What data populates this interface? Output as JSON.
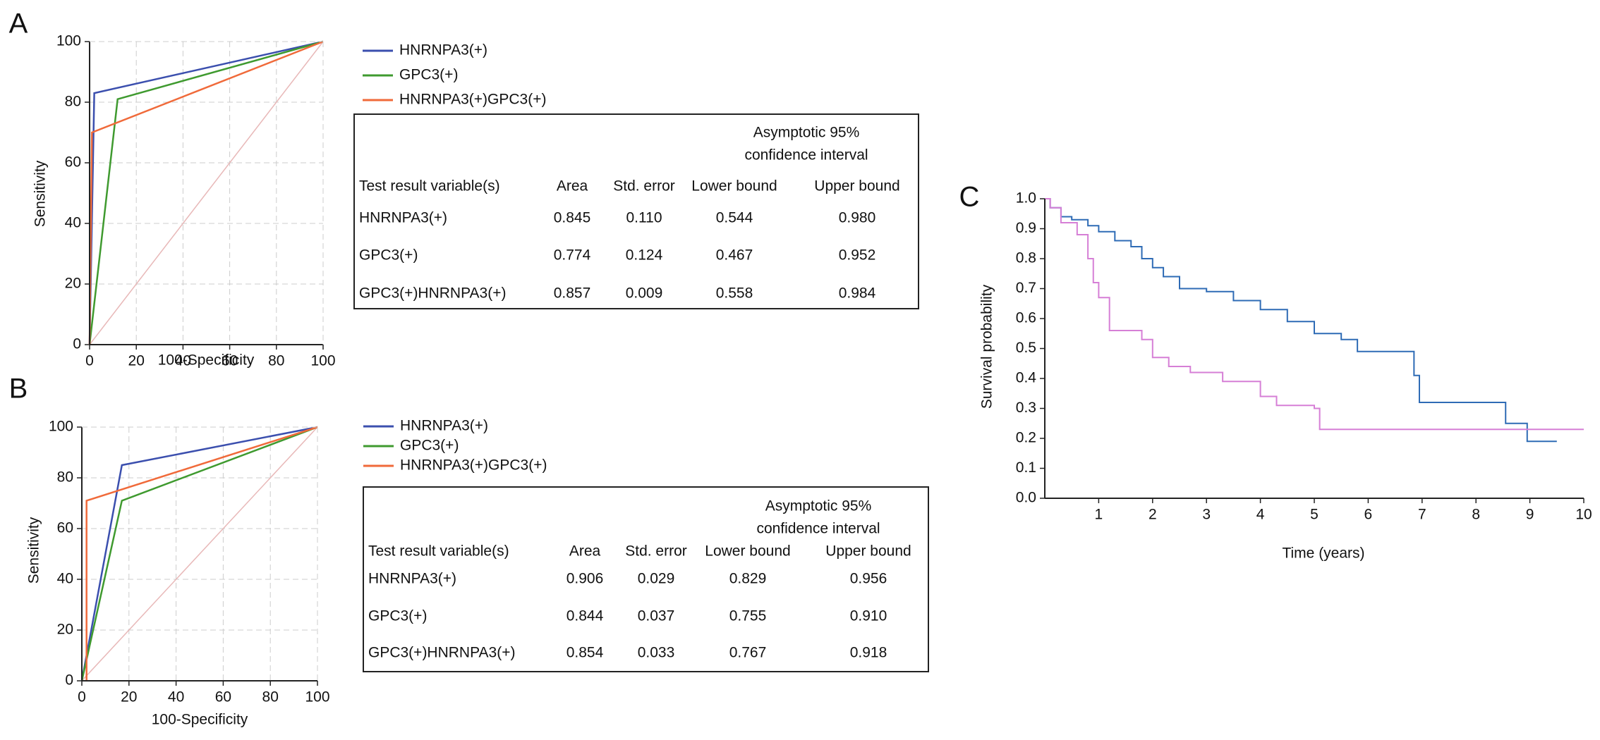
{
  "chart_data": [
    {
      "type": "line",
      "panel_label": "A",
      "x_label": "100-Specificity",
      "y_label": "Sensitivity",
      "xlim": [
        0,
        100
      ],
      "ylim": [
        0,
        100
      ],
      "xticks": [
        0,
        20,
        40,
        60,
        80,
        100
      ],
      "yticks": [
        0,
        20,
        40,
        60,
        80,
        100
      ],
      "grid": true,
      "series": [
        {
          "name": "HNRNPA3(+)",
          "color": "#3b4fae",
          "x": [
            0,
            2,
            100
          ],
          "values": [
            0,
            83,
            100
          ]
        },
        {
          "name": "GPC3(+)",
          "color": "#3f9a2f",
          "x": [
            0,
            12,
            100
          ],
          "values": [
            0,
            81,
            100
          ]
        },
        {
          "name": "HNRNPA3(+)GPC3(+)",
          "color": "#f06a3a",
          "x": [
            0,
            1,
            100
          ],
          "values": [
            0,
            70,
            100
          ]
        }
      ]
    },
    {
      "type": "line",
      "panel_label": "B",
      "x_label": "100-Specificity",
      "y_label": "Sensitivity",
      "xlim": [
        0,
        100
      ],
      "ylim": [
        0,
        100
      ],
      "xticks": [
        0,
        20,
        40,
        60,
        80,
        100
      ],
      "yticks": [
        0,
        20,
        40,
        60,
        80,
        100
      ],
      "grid": true,
      "series": [
        {
          "name": "HNRNPA3(+)",
          "color": "#3b4fae",
          "x": [
            0,
            17,
            100
          ],
          "values": [
            0,
            85,
            100
          ]
        },
        {
          "name": "GPC3(+)",
          "color": "#3f9a2f",
          "x": [
            0,
            17,
            100
          ],
          "values": [
            0,
            71,
            100
          ]
        },
        {
          "name": "HNRNPA3(+)GPC3(+)",
          "color": "#f06a3a",
          "x": [
            2,
            2,
            100
          ],
          "values": [
            0,
            71,
            100
          ]
        }
      ]
    },
    {
      "type": "step",
      "panel_label": "C",
      "x_label": "Time (years)",
      "y_label": "Survival probability",
      "xlim": [
        0,
        10
      ],
      "ylim": [
        0,
        1
      ],
      "xticks": [
        1,
        2,
        3,
        4,
        5,
        6,
        7,
        8,
        9,
        10
      ],
      "yticks": [
        {
          "value": 0,
          "label": "0.0"
        },
        0.1,
        0.2,
        0.3,
        0.4,
        0.5,
        0.6,
        0.7,
        0.8,
        0.9,
        {
          "value": 1,
          "label": "1.0"
        }
      ],
      "grid": false,
      "series": [
        {
          "color": "#2e6bb5",
          "x": [
            0,
            0.1,
            0.3,
            0.5,
            0.8,
            1.0,
            1.3,
            1.6,
            1.8,
            2.0,
            2.2,
            2.5,
            3.0,
            3.5,
            4.0,
            4.5,
            5.0,
            5.5,
            5.8,
            6.5,
            6.85,
            6.95,
            8.55,
            8.95,
            9.5
          ],
          "values": [
            1.0,
            0.97,
            0.94,
            0.93,
            0.91,
            0.89,
            0.86,
            0.84,
            0.8,
            0.77,
            0.74,
            0.7,
            0.69,
            0.66,
            0.63,
            0.59,
            0.55,
            0.53,
            0.49,
            0.49,
            0.41,
            0.32,
            0.25,
            0.19,
            0.19
          ]
        },
        {
          "color": "#d67fd6",
          "x": [
            0,
            0.1,
            0.3,
            0.6,
            0.8,
            0.9,
            1.0,
            1.2,
            1.8,
            2.0,
            2.3,
            2.7,
            3.3,
            4.0,
            4.3,
            5.0,
            5.1,
            10
          ],
          "values": [
            1.0,
            0.97,
            0.92,
            0.88,
            0.8,
            0.72,
            0.67,
            0.56,
            0.53,
            0.47,
            0.44,
            0.42,
            0.39,
            0.34,
            0.31,
            0.3,
            0.23,
            0.23
          ]
        }
      ]
    }
  ],
  "tables": [
    {
      "header_top": [
        "Asymptotic 95%",
        "confidence interval"
      ],
      "columns": [
        "Test result variable(s)",
        "Area",
        "Std. error",
        "Lower bound",
        "Upper bound"
      ],
      "rows": [
        [
          "HNRNPA3(+)",
          "0.845",
          "0.110",
          "0.544",
          "0.980"
        ],
        [
          "GPC3(+)",
          "0.774",
          "0.124",
          "0.467",
          "0.952"
        ],
        [
          "GPC3(+)HNRNPA3(+)",
          "0.857",
          "0.009",
          "0.558",
          "0.984"
        ]
      ]
    },
    {
      "header_top": [
        "Asymptotic 95%",
        "confidence interval"
      ],
      "columns": [
        "Test result variable(s)",
        "Area",
        "Std. error",
        "Lower bound",
        "Upper bound"
      ],
      "rows": [
        [
          "HNRNPA3(+)",
          "0.906",
          "0.029",
          "0.829",
          "0.956"
        ],
        [
          "GPC3(+)",
          "0.844",
          "0.037",
          "0.755",
          "0.910"
        ],
        [
          "GPC3(+)HNRNPA3(+)",
          "0.854",
          "0.033",
          "0.767",
          "0.918"
        ]
      ]
    }
  ]
}
